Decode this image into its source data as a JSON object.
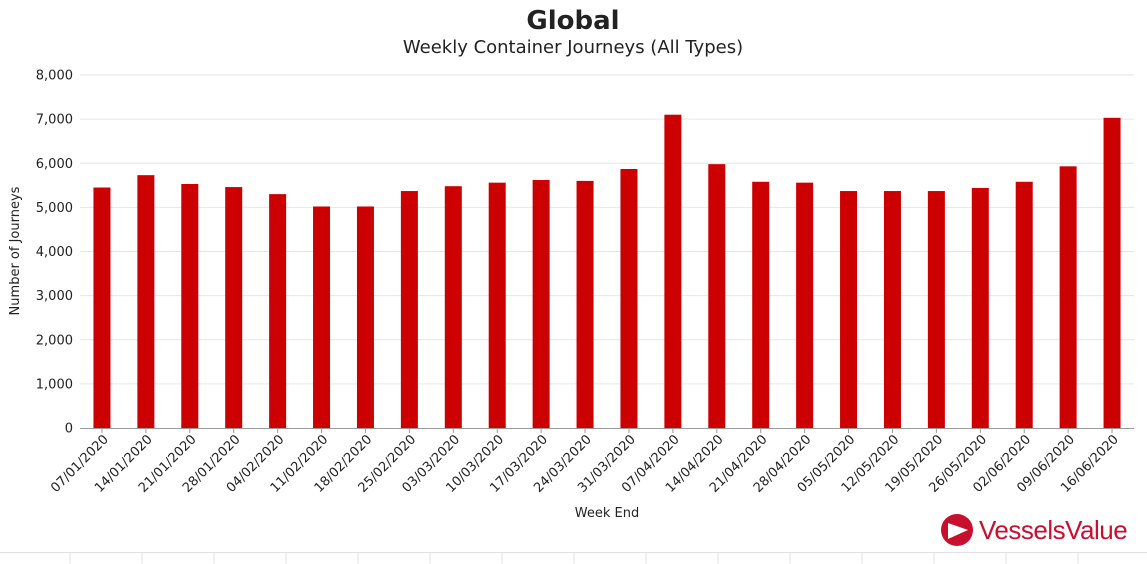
{
  "chart_data": {
    "type": "bar",
    "title": "Global",
    "subtitle": "Weekly Container Journeys (All Types)",
    "xlabel": "Week End",
    "ylabel": "Number of Journeys",
    "categories": [
      "07/01/2020",
      "14/01/2020",
      "21/01/2020",
      "28/01/2020",
      "04/02/2020",
      "11/02/2020",
      "18/02/2020",
      "25/02/2020",
      "03/03/2020",
      "10/03/2020",
      "17/03/2020",
      "24/03/2020",
      "31/03/2020",
      "07/04/2020",
      "14/04/2020",
      "21/04/2020",
      "28/04/2020",
      "05/05/2020",
      "12/05/2020",
      "19/05/2020",
      "26/05/2020",
      "02/06/2020",
      "09/06/2020",
      "16/06/2020"
    ],
    "values": [
      5450,
      5730,
      5530,
      5460,
      5300,
      5020,
      5020,
      5370,
      5480,
      5560,
      5620,
      5600,
      5870,
      7100,
      5980,
      5580,
      5560,
      5370,
      5370,
      5370,
      5440,
      5580,
      5930,
      7030
    ],
    "ylim": [
      0,
      8000
    ],
    "yticks": [
      0,
      1000,
      2000,
      3000,
      4000,
      5000,
      6000,
      7000,
      8000
    ],
    "ytick_labels": [
      "0",
      "1,000",
      "2,000",
      "3,000",
      "4,000",
      "5,000",
      "6,000",
      "7,000",
      "8,000"
    ],
    "grid": true,
    "legend": "none",
    "bar_color": "#cc0000",
    "grid_color": "#e6e6e6"
  },
  "branding": {
    "logo_text": "VesselsValue",
    "logo_icon": "vesselsvalue-logo-icon",
    "logo_color": "#c8102e"
  }
}
